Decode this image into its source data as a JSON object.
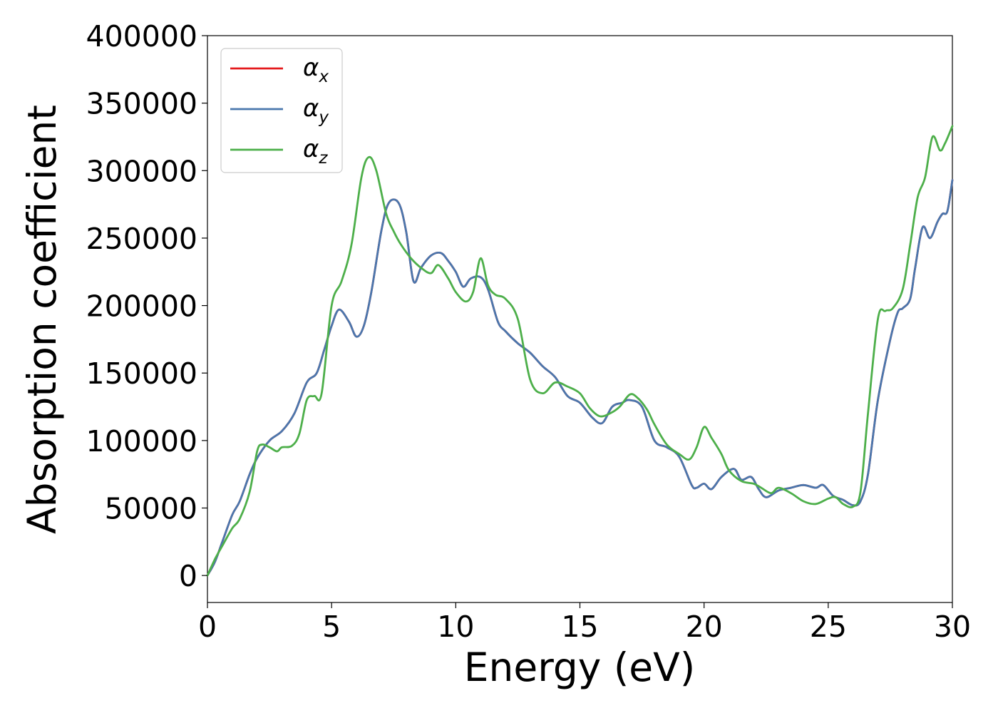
{
  "chart_data": {
    "type": "line",
    "xlabel": "Energy (eV)",
    "ylabel": "Absorption coefficient",
    "xlim": [
      0,
      30
    ],
    "ylim": [
      -20000,
      400000
    ],
    "x_ticks": [
      0,
      5,
      10,
      15,
      20,
      25,
      30
    ],
    "y_ticks": [
      0,
      50000,
      100000,
      150000,
      200000,
      250000,
      300000,
      350000,
      400000
    ],
    "grid": false,
    "legend_position": "top-left",
    "series": [
      {
        "name": "α_x",
        "symbol": "α",
        "subscript": "x",
        "color": "#e41a1c",
        "x": [
          0,
          0.3,
          0.6,
          1.0,
          1.3,
          1.7,
          2.0,
          2.5,
          3.0,
          3.5,
          4.0,
          4.4,
          4.7,
          5.0,
          5.3,
          5.7,
          6.0,
          6.3,
          6.6,
          7.0,
          7.3,
          7.7,
          8.0,
          8.3,
          8.6,
          9.0,
          9.4,
          9.7,
          10.0,
          10.3,
          10.6,
          11.0,
          11.3,
          11.7,
          12.0,
          12.5,
          13.0,
          13.5,
          14.0,
          14.5,
          15.0,
          15.5,
          15.9,
          16.3,
          16.7,
          17.0,
          17.5,
          18.0,
          18.5,
          19.0,
          19.5,
          19.7,
          20.0,
          20.3,
          20.7,
          21.2,
          21.5,
          21.9,
          22.2,
          22.5,
          23.0,
          23.5,
          24.0,
          24.5,
          24.8,
          25.2,
          25.6,
          26.0,
          26.3,
          26.6,
          27.0,
          27.5,
          27.8,
          28.0,
          28.3,
          28.5,
          28.8,
          29.1,
          29.4,
          29.6,
          29.8,
          30.0
        ],
        "y": [
          0,
          10000,
          25000,
          45000,
          55000,
          75000,
          87000,
          100000,
          107000,
          120000,
          143000,
          150000,
          167000,
          185000,
          197000,
          188000,
          177000,
          185000,
          210000,
          255000,
          276000,
          276000,
          255000,
          218000,
          228000,
          237000,
          239000,
          233000,
          225000,
          214000,
          220000,
          221000,
          212000,
          188000,
          181000,
          172000,
          165000,
          155000,
          147000,
          133000,
          128000,
          117000,
          113000,
          125000,
          128000,
          130000,
          125000,
          100000,
          95000,
          88000,
          67000,
          65000,
          68000,
          64000,
          73000,
          79000,
          71000,
          73000,
          64000,
          58000,
          63000,
          65000,
          67000,
          65000,
          67000,
          59000,
          56000,
          52000,
          55000,
          75000,
          130000,
          175000,
          195000,
          198000,
          205000,
          228000,
          258000,
          250000,
          262000,
          268000,
          270000,
          293000
        ]
      },
      {
        "name": "α_y",
        "symbol": "α",
        "subscript": "y",
        "color": "#4a77ad",
        "x": [
          0,
          0.3,
          0.6,
          1.0,
          1.3,
          1.7,
          2.0,
          2.5,
          3.0,
          3.5,
          4.0,
          4.4,
          4.7,
          5.0,
          5.3,
          5.7,
          6.0,
          6.3,
          6.6,
          7.0,
          7.3,
          7.7,
          8.0,
          8.3,
          8.6,
          9.0,
          9.4,
          9.7,
          10.0,
          10.3,
          10.6,
          11.0,
          11.3,
          11.7,
          12.0,
          12.5,
          13.0,
          13.5,
          14.0,
          14.5,
          15.0,
          15.5,
          15.9,
          16.3,
          16.7,
          17.0,
          17.5,
          18.0,
          18.5,
          19.0,
          19.5,
          19.7,
          20.0,
          20.3,
          20.7,
          21.2,
          21.5,
          21.9,
          22.2,
          22.5,
          23.0,
          23.5,
          24.0,
          24.5,
          24.8,
          25.2,
          25.6,
          26.0,
          26.3,
          26.6,
          27.0,
          27.5,
          27.8,
          28.0,
          28.3,
          28.5,
          28.8,
          29.1,
          29.4,
          29.6,
          29.8,
          30.0
        ],
        "y": [
          0,
          10000,
          25000,
          45000,
          55000,
          75000,
          87000,
          100000,
          107000,
          120000,
          143000,
          150000,
          167000,
          185000,
          197000,
          188000,
          177000,
          185000,
          210000,
          255000,
          276000,
          276000,
          255000,
          218000,
          228000,
          237000,
          239000,
          233000,
          225000,
          214000,
          220000,
          221000,
          212000,
          188000,
          181000,
          172000,
          165000,
          155000,
          147000,
          133000,
          128000,
          117000,
          113000,
          125000,
          128000,
          130000,
          125000,
          100000,
          95000,
          88000,
          67000,
          65000,
          68000,
          64000,
          73000,
          79000,
          71000,
          73000,
          64000,
          58000,
          63000,
          65000,
          67000,
          65000,
          67000,
          59000,
          56000,
          52000,
          55000,
          75000,
          130000,
          175000,
          195000,
          198000,
          205000,
          228000,
          258000,
          250000,
          262000,
          268000,
          270000,
          293000
        ]
      },
      {
        "name": "α_z",
        "symbol": "α",
        "subscript": "z",
        "color": "#4daf4a",
        "x": [
          0,
          0.3,
          0.6,
          1.0,
          1.3,
          1.7,
          2.0,
          2.2,
          2.5,
          2.8,
          3.0,
          3.4,
          3.7,
          4.0,
          4.3,
          4.6,
          5.0,
          5.4,
          5.8,
          6.2,
          6.5,
          6.8,
          7.2,
          7.5,
          7.8,
          8.2,
          8.6,
          9.0,
          9.3,
          9.7,
          10.0,
          10.4,
          10.7,
          11.0,
          11.3,
          11.6,
          12.0,
          12.5,
          13.0,
          13.5,
          14.0,
          14.5,
          15.0,
          15.4,
          15.8,
          16.2,
          16.6,
          17.0,
          17.3,
          17.7,
          18.0,
          18.5,
          19.0,
          19.4,
          19.7,
          20.0,
          20.3,
          20.7,
          21.0,
          21.5,
          22.0,
          22.3,
          22.7,
          23.0,
          23.5,
          24.0,
          24.5,
          25.0,
          25.3,
          25.6,
          26.0,
          26.3,
          26.6,
          27.0,
          27.3,
          27.6,
          28.0,
          28.3,
          28.6,
          28.9,
          29.2,
          29.5,
          29.7,
          30.0
        ],
        "y": [
          0,
          12000,
          22000,
          35000,
          42000,
          62000,
          92000,
          97000,
          95000,
          92000,
          95000,
          96000,
          105000,
          130000,
          133000,
          135000,
          200000,
          218000,
          245000,
          295000,
          310000,
          300000,
          268000,
          255000,
          245000,
          235000,
          228000,
          224000,
          230000,
          220000,
          210000,
          203000,
          210000,
          235000,
          215000,
          208000,
          205000,
          190000,
          145000,
          135000,
          143000,
          140000,
          135000,
          124000,
          118000,
          120000,
          125000,
          134000,
          132000,
          123000,
          112000,
          97000,
          90000,
          86000,
          95000,
          110000,
          102000,
          90000,
          78000,
          70000,
          68000,
          65000,
          61000,
          65000,
          61000,
          55000,
          53000,
          57000,
          58000,
          53000,
          51000,
          62000,
          120000,
          190000,
          196000,
          198000,
          212000,
          245000,
          280000,
          295000,
          325000,
          315000,
          320000,
          333000
        ]
      }
    ]
  }
}
